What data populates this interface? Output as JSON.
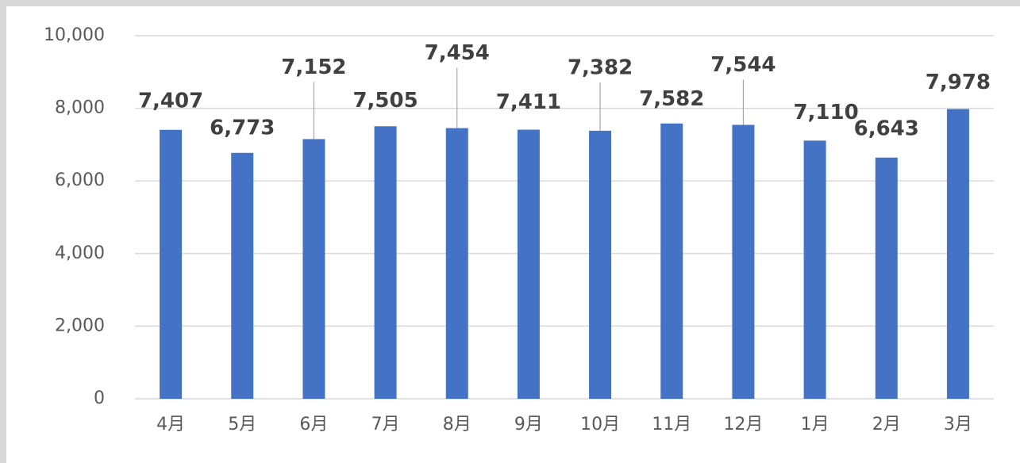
{
  "chart_data": {
    "type": "bar",
    "categories": [
      "4月",
      "5月",
      "6月",
      "7月",
      "8月",
      "9月",
      "10月",
      "11月",
      "12月",
      "1月",
      "2月",
      "3月"
    ],
    "values": [
      7407,
      6773,
      7152,
      7505,
      7454,
      7411,
      7382,
      7582,
      7544,
      7110,
      6643,
      7978
    ],
    "value_labels": [
      "7,407",
      "6,773",
      "7,152",
      "7,505",
      "7,454",
      "7,411",
      "7,382",
      "7,582",
      "7,544",
      "7,110",
      "6,643",
      "7,978"
    ],
    "color": "#4472c4",
    "ylim": [
      0,
      10000
    ],
    "yticks": [
      0,
      {
        "value": 2000,
        "label": "2,000"
      },
      {
        "value": 4000,
        "label": "4,000"
      },
      {
        "value": 6000,
        "label": "6,000"
      },
      {
        "value": 8000,
        "label": "8,000"
      },
      {
        "value": 10000,
        "label": "10,000"
      }
    ],
    "grid": true
  }
}
